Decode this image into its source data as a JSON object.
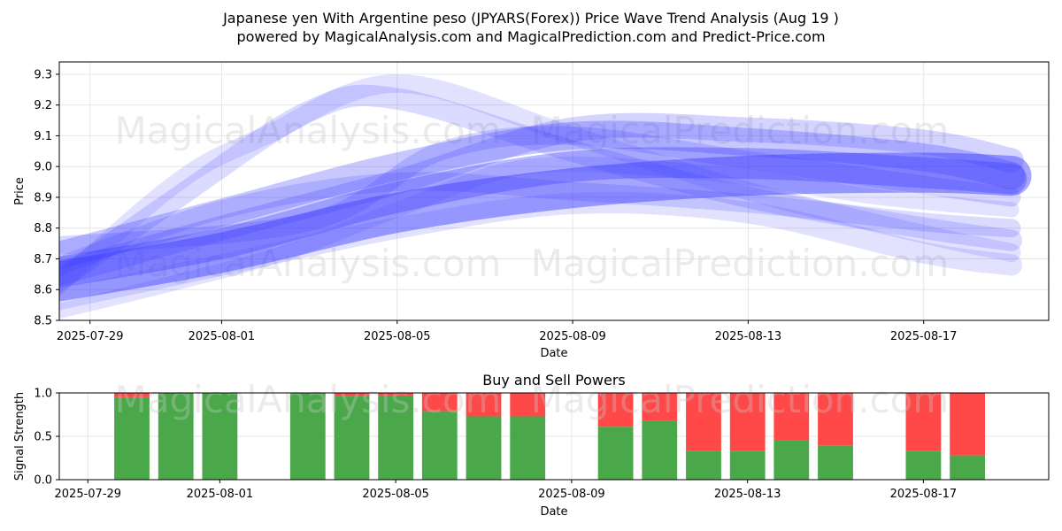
{
  "title_line1": "Japanese yen With Argentine peso (JPYARS(Forex)) Price Wave Trend Analysis (Aug 19 )",
  "title_line2": "powered by MagicalAnalysis.com and MagicalPrediction.com and Predict-Price.com",
  "watermarks": [
    "MagicalAnalysis.com",
    "MagicalPrediction.com"
  ],
  "chart_data": [
    {
      "type": "area",
      "xlabel": "Date",
      "ylabel": "Price",
      "ylim": [
        8.5,
        9.34
      ],
      "xlim": [
        "2025-07-28",
        "2025-08-19"
      ],
      "x_ticks": [
        "2025-07-29",
        "2025-08-01",
        "2025-08-05",
        "2025-08-09",
        "2025-08-13",
        "2025-08-17"
      ],
      "y_ticks": [
        "8.5",
        "8.6",
        "8.7",
        "8.8",
        "8.9",
        "9.0",
        "9.1",
        "9.2",
        "9.3"
      ],
      "grid": true,
      "band_color": "#3a3aff",
      "waves": [
        {
          "x": [
            "2025-07-28",
            "2025-08-01",
            "2025-08-05",
            "2025-08-09",
            "2025-08-13",
            "2025-08-17",
            "2025-08-19"
          ],
          "values": [
            8.62,
            8.72,
            8.85,
            8.93,
            8.97,
            8.98,
            8.97
          ],
          "width": 0.13,
          "opacity": 0.45
        },
        {
          "x": [
            "2025-07-28",
            "2025-08-01",
            "2025-08-05",
            "2025-08-09",
            "2025-08-13",
            "2025-08-17",
            "2025-08-19"
          ],
          "values": [
            8.65,
            8.75,
            8.9,
            9.0,
            9.01,
            8.98,
            8.96
          ],
          "width": 0.1,
          "opacity": 0.35
        },
        {
          "x": [
            "2025-07-28",
            "2025-08-01",
            "2025-08-05",
            "2025-08-09",
            "2025-08-13",
            "2025-08-17",
            "2025-08-19"
          ],
          "values": [
            8.7,
            8.85,
            9.0,
            9.1,
            9.08,
            9.03,
            8.97
          ],
          "width": 0.09,
          "opacity": 0.28
        },
        {
          "x": [
            "2025-07-28",
            "2025-08-01",
            "2025-08-05",
            "2025-08-09",
            "2025-08-13",
            "2025-08-17",
            "2025-08-19"
          ],
          "values": [
            8.64,
            8.8,
            8.95,
            9.12,
            9.12,
            9.08,
            9.02
          ],
          "width": 0.08,
          "opacity": 0.22
        },
        {
          "x": [
            "2025-07-28",
            "2025-07-31",
            "2025-08-03",
            "2025-08-05",
            "2025-08-09",
            "2025-08-13",
            "2025-08-17",
            "2025-08-19"
          ],
          "values": [
            8.6,
            8.9,
            9.18,
            9.22,
            9.05,
            8.9,
            8.8,
            8.76
          ],
          "width": 0.07,
          "opacity": 0.18
        },
        {
          "x": [
            "2025-07-28",
            "2025-07-31",
            "2025-08-02",
            "2025-08-05",
            "2025-08-09",
            "2025-08-13",
            "2025-08-17",
            "2025-08-19"
          ],
          "values": [
            8.58,
            8.95,
            9.1,
            9.27,
            9.1,
            8.92,
            8.78,
            8.72
          ],
          "width": 0.06,
          "opacity": 0.15
        },
        {
          "x": [
            "2025-07-28",
            "2025-08-01",
            "2025-08-05",
            "2025-08-09",
            "2025-08-13",
            "2025-08-17",
            "2025-08-19"
          ],
          "values": [
            8.66,
            8.86,
            8.95,
            8.92,
            8.88,
            8.82,
            8.8
          ],
          "width": 0.06,
          "opacity": 0.18
        },
        {
          "x": [
            "2025-07-28",
            "2025-08-01",
            "2025-08-05",
            "2025-08-09",
            "2025-08-13",
            "2025-08-17",
            "2025-08-19"
          ],
          "values": [
            8.56,
            8.68,
            8.8,
            8.88,
            8.85,
            8.72,
            8.68
          ],
          "width": 0.07,
          "opacity": 0.15
        },
        {
          "x": [
            "2025-07-28",
            "2025-08-03",
            "2025-08-06",
            "2025-08-09",
            "2025-08-13",
            "2025-08-17",
            "2025-08-19"
          ],
          "values": [
            8.74,
            8.82,
            9.05,
            9.1,
            9.02,
            8.94,
            8.9
          ],
          "width": 0.06,
          "opacity": 0.2
        },
        {
          "x": [
            "2025-07-28",
            "2025-08-02",
            "2025-08-05",
            "2025-08-08",
            "2025-08-12",
            "2025-08-16",
            "2025-08-19"
          ],
          "values": [
            8.52,
            8.7,
            8.86,
            9.0,
            8.98,
            8.9,
            8.86
          ],
          "width": 0.05,
          "opacity": 0.14
        }
      ]
    },
    {
      "type": "bar",
      "title": "Buy and Sell Powers",
      "xlabel": "Date",
      "ylabel": "Signal Strength",
      "ylim": [
        0,
        1.0
      ],
      "xlim": [
        "2025-07-28",
        "2025-08-19"
      ],
      "x_ticks": [
        "2025-07-29",
        "2025-08-01",
        "2025-08-05",
        "2025-08-09",
        "2025-08-13",
        "2025-08-17"
      ],
      "y_ticks": [
        "0.0",
        "0.5",
        "1.0"
      ],
      "grid": true,
      "buy_color": "#4aa84a",
      "sell_color": "#ff4848",
      "categories": [
        "2025-07-30",
        "2025-07-31",
        "2025-08-01",
        "2025-08-03",
        "2025-08-04",
        "2025-08-05",
        "2025-08-06",
        "2025-08-07",
        "2025-08-08",
        "2025-08-10",
        "2025-08-11",
        "2025-08-12",
        "2025-08-13",
        "2025-08-14",
        "2025-08-15",
        "2025-08-17",
        "2025-08-18"
      ],
      "series": [
        {
          "name": "Buy",
          "values": [
            0.95,
            1.0,
            1.0,
            1.0,
            0.96,
            0.97,
            0.79,
            0.73,
            0.73,
            0.61,
            0.68,
            0.33,
            0.33,
            0.45,
            0.39,
            0.33,
            0.28
          ]
        },
        {
          "name": "Sell",
          "values": [
            0.05,
            0.0,
            0.0,
            0.0,
            0.04,
            0.03,
            0.21,
            0.27,
            0.27,
            0.39,
            0.32,
            0.67,
            0.67,
            0.55,
            0.61,
            0.67,
            0.72
          ]
        }
      ]
    }
  ]
}
